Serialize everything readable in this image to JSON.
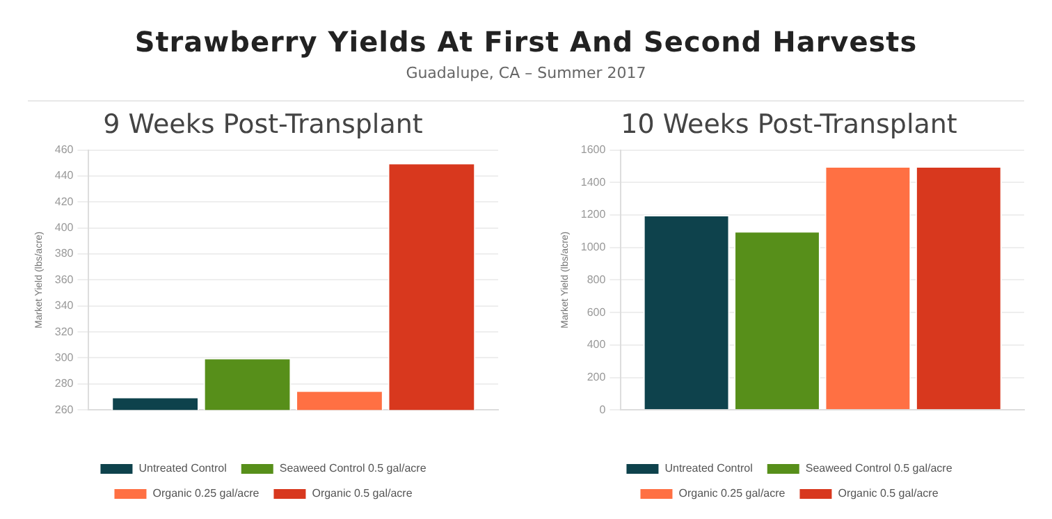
{
  "chart_data": [
    {
      "type": "other",
      "title": "Strawberry Yields At First And Second Harvests",
      "subtitle": "Guadalupe, CA – Summer 2017"
    },
    {
      "type": "bar",
      "title": "9 Weeks Post-Transplant",
      "ylabel": "Market Yield (lbs/acre)",
      "categories": [
        null
      ],
      "ylim": [
        260,
        460
      ],
      "yticks": [
        260,
        280,
        300,
        320,
        340,
        360,
        380,
        400,
        420,
        440,
        460
      ],
      "grid": "y",
      "legend": "bottom",
      "series": [
        {
          "name": "Untreated Control",
          "color": "#0e424c",
          "values": [
            270
          ]
        },
        {
          "name": "Seaweed Control 0.5 gal/acre",
          "color": "#578f1a",
          "values": [
            300
          ]
        },
        {
          "name": "Organic 0.25 gal/acre",
          "color": "#ff7043",
          "values": [
            275
          ]
        },
        {
          "name": "Organic 0.5 gal/acre",
          "color": "#d8381e",
          "values": [
            450
          ]
        }
      ]
    },
    {
      "type": "bar",
      "title": "10 Weeks Post-Transplant",
      "ylabel": "Market Yield (lbs/acre)",
      "categories": [
        null
      ],
      "ylim": [
        0,
        1600
      ],
      "yticks": [
        0,
        200,
        400,
        600,
        800,
        1000,
        1200,
        1400,
        1600
      ],
      "grid": "y",
      "legend": "bottom",
      "series": [
        {
          "name": "Untreated Control",
          "color": "#0e424c",
          "values": [
            1200
          ]
        },
        {
          "name": "Seaweed Control 0.5 gal/acre",
          "color": "#578f1a",
          "values": [
            1100
          ]
        },
        {
          "name": "Organic 0.25 gal/acre",
          "color": "#ff7043",
          "values": [
            1500
          ]
        },
        {
          "name": "Organic 0.5 gal/acre",
          "color": "#d8381e",
          "values": [
            1500
          ]
        }
      ]
    }
  ]
}
